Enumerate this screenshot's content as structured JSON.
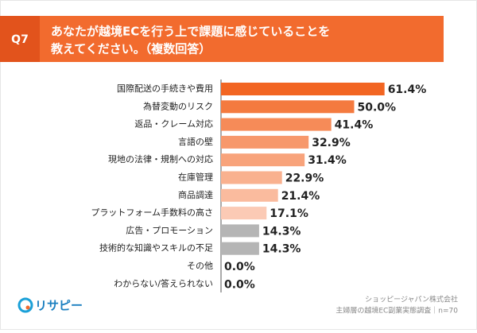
{
  "question": "Q7",
  "logo": "リサピー",
  "source": [
    "ショッピージャパン株式会社",
    "主婦層の越境EC副業実態調査｜n=70"
  ],
  "chart_data": {
    "type": "bar",
    "orientation": "horizontal",
    "title": [
      "あなたが越境ECを行う上で課題に感じていることを",
      "教えてください。（複数回答）"
    ],
    "categories": [
      "国際配送の手続きや費用",
      "為替変動のリスク",
      "返品・クレーム対応",
      "言語の壁",
      "現地の法律・規制への対応",
      "在庫管理",
      "商品調達",
      "プラットフォーム手数料の高さ",
      "広告・プロモーション",
      "技術的な知識やスキルの不足",
      "その他",
      "わからない/答えられない"
    ],
    "values": [
      61.4,
      50.0,
      41.4,
      32.9,
      31.4,
      22.9,
      21.4,
      17.1,
      14.3,
      14.3,
      0.0,
      0.0
    ],
    "value_labels": [
      "61.4%",
      "50.0%",
      "41.4%",
      "32.9%",
      "31.4%",
      "22.9%",
      "21.4%",
      "17.1%",
      "14.3%",
      "14.3%",
      "0.0%",
      "0.0%"
    ],
    "colors": [
      "#f26522",
      "#f47a3f",
      "#f68b58",
      "#f7986b",
      "#f8a37b",
      "#f9b18f",
      "#fabb9e",
      "#fbcab5",
      "#b5b5b5",
      "#b5b5b5",
      "#b5b5b5",
      "#b5b5b5"
    ],
    "xlim": [
      0,
      100
    ]
  }
}
